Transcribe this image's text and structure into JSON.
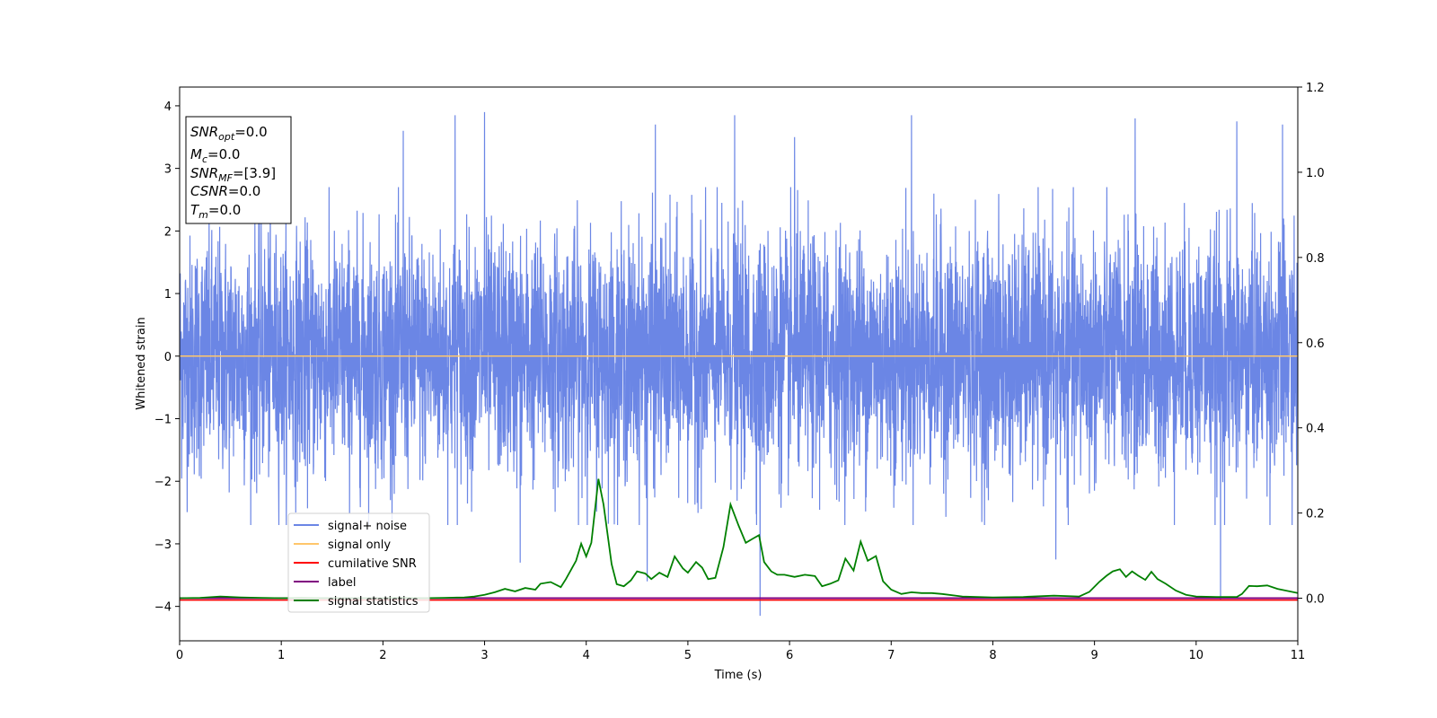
{
  "chart_data": {
    "type": "line",
    "xlabel": "Time (s)",
    "ylabel": "Whitened strain",
    "xlim": [
      0,
      11
    ],
    "ylim": [
      -4.55,
      4.3
    ],
    "ylim_right": [
      -0.1,
      1.2
    ],
    "x_ticks": [
      "0",
      "1",
      "2",
      "3",
      "4",
      "5",
      "6",
      "7",
      "8",
      "9",
      "10",
      "11"
    ],
    "y_ticks": [
      "4",
      "3",
      "2",
      "1",
      "0",
      "−1",
      "−2",
      "−3",
      "−4"
    ],
    "y_ticks_right": [
      "1.2",
      "1.0",
      "0.8",
      "0.6",
      "0.4",
      "0.2",
      "0.0"
    ],
    "grid": false,
    "legend_position": "lower-left",
    "colors": {
      "signal_noise": "#6b86e5",
      "signal_only": "#ffc66b",
      "cumulative_snr": "#ff0000",
      "label": "#800080",
      "signal_statistics": "#008000"
    },
    "series": [
      {
        "name": "signal+ noise",
        "axis": "left",
        "description_type": "noise",
        "envelope": {
          "typical_min": -2.4,
          "typical_max": 2.4,
          "extreme_min": -4.2,
          "extreme_max": 3.9
        },
        "spikes": [
          {
            "x": 2.71,
            "y": 3.85
          },
          {
            "x": 3.0,
            "y": 3.9
          },
          {
            "x": 5.46,
            "y": 3.85
          },
          {
            "x": 7.2,
            "y": 3.85
          },
          {
            "x": 9.4,
            "y": 3.8
          },
          {
            "x": 10.4,
            "y": 3.75
          },
          {
            "x": 10.85,
            "y": 3.7
          },
          {
            "x": 2.2,
            "y": 3.6
          },
          {
            "x": 3.35,
            "y": -3.3
          },
          {
            "x": 5.71,
            "y": -4.15
          },
          {
            "x": 10.24,
            "y": -3.9
          },
          {
            "x": 4.6,
            "y": -3.6
          },
          {
            "x": 8.62,
            "y": -3.25
          },
          {
            "x": 4.68,
            "y": 3.7
          },
          {
            "x": 6.05,
            "y": 3.5
          }
        ]
      },
      {
        "name": "signal only",
        "axis": "left",
        "x": [
          0,
          11
        ],
        "y": [
          0,
          0
        ]
      },
      {
        "name": "cumilative SNR",
        "axis": "left",
        "x": [
          0,
          11
        ],
        "y": [
          -3.9,
          -3.9
        ]
      },
      {
        "name": "label",
        "axis": "right",
        "x": [
          0,
          11
        ],
        "y": [
          0,
          0
        ]
      },
      {
        "name": "signal statistics",
        "axis": "right",
        "x": [
          0,
          0.2,
          0.4,
          0.6,
          0.8,
          1.0,
          1.2,
          1.4,
          1.6,
          1.8,
          2.0,
          2.2,
          2.4,
          2.6,
          2.8,
          2.9,
          3.0,
          3.1,
          3.2,
          3.3,
          3.4,
          3.5,
          3.55,
          3.65,
          3.75,
          3.8,
          3.9,
          3.95,
          4.0,
          4.05,
          4.12,
          4.17,
          4.25,
          4.3,
          4.37,
          4.44,
          4.5,
          4.58,
          4.64,
          4.72,
          4.8,
          4.87,
          4.95,
          5.0,
          5.08,
          5.14,
          5.2,
          5.27,
          5.35,
          5.42,
          5.5,
          5.57,
          5.64,
          5.7,
          5.75,
          5.82,
          5.88,
          5.95,
          6.05,
          6.15,
          6.25,
          6.32,
          6.4,
          6.48,
          6.55,
          6.63,
          6.7,
          6.77,
          6.85,
          6.92,
          7.0,
          7.1,
          7.2,
          7.3,
          7.4,
          7.5,
          7.7,
          8.0,
          8.3,
          8.6,
          8.85,
          8.95,
          9.05,
          9.12,
          9.18,
          9.25,
          9.31,
          9.37,
          9.43,
          9.5,
          9.56,
          9.62,
          9.7,
          9.8,
          9.9,
          10.0,
          10.2,
          10.4,
          10.45,
          10.52,
          10.6,
          10.7,
          10.8,
          11.0
        ],
        "y": [
          0,
          0.001,
          0.004,
          0.002,
          0.001,
          0.0,
          0.001,
          0.0,
          0.0,
          0.0,
          0.0,
          0.001,
          0.0,
          0.001,
          0.002,
          0.004,
          0.008,
          0.014,
          0.022,
          0.016,
          0.024,
          0.02,
          0.034,
          0.038,
          0.026,
          0.045,
          0.088,
          0.128,
          0.098,
          0.13,
          0.28,
          0.22,
          0.08,
          0.033,
          0.028,
          0.042,
          0.063,
          0.058,
          0.045,
          0.06,
          0.05,
          0.098,
          0.07,
          0.06,
          0.085,
          0.072,
          0.045,
          0.048,
          0.12,
          0.22,
          0.17,
          0.13,
          0.14,
          0.148,
          0.085,
          0.063,
          0.055,
          0.055,
          0.05,
          0.055,
          0.052,
          0.028,
          0.034,
          0.042,
          0.093,
          0.065,
          0.133,
          0.088,
          0.099,
          0.04,
          0.02,
          0.01,
          0.014,
          0.012,
          0.012,
          0.01,
          0.004,
          0.002,
          0.003,
          0.006,
          0.004,
          0.015,
          0.039,
          0.053,
          0.063,
          0.068,
          0.05,
          0.063,
          0.053,
          0.043,
          0.062,
          0.045,
          0.034,
          0.018,
          0.008,
          0.004,
          0.003,
          0.003,
          0.01,
          0.029,
          0.028,
          0.03,
          0.022,
          0.012
        ]
      }
    ]
  },
  "stats_box": {
    "snr_opt": {
      "base": "SNR",
      "sub": "opt",
      "value": "=0.0"
    },
    "mc": {
      "base": "M",
      "sub": "c",
      "value": "=0.0"
    },
    "snr_mf": {
      "base": "SNR",
      "sub": "MF",
      "value": "=[3.9]"
    },
    "csnr": {
      "base": "CSNR",
      "value": "=0.0"
    },
    "tm": {
      "base": "T",
      "sub": "m",
      "value": "=0.0"
    }
  }
}
